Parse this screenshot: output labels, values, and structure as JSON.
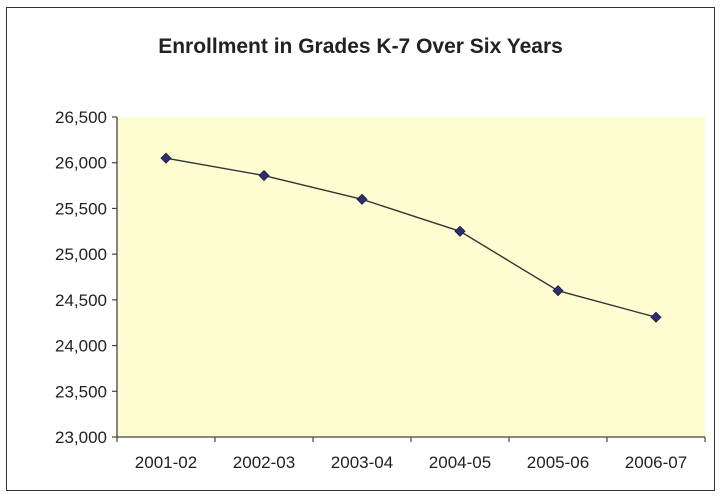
{
  "chart_data": {
    "type": "line",
    "title": "Enrollment in Grades K-7 Over Six Years",
    "xlabel": "",
    "ylabel": "",
    "categories": [
      "2001-02",
      "2002-03",
      "2003-04",
      "2004-05",
      "2005-06",
      "2006-07"
    ],
    "series": [
      {
        "values": [
          26050,
          25860,
          25600,
          25250,
          24600,
          24310
        ]
      }
    ],
    "ylim": [
      23000,
      26500
    ],
    "y_ticks": [
      23000,
      23500,
      24000,
      24500,
      25000,
      25500,
      26000,
      26500
    ],
    "y_tick_labels": [
      "23,000",
      "23,500",
      "24,000",
      "24,500",
      "25,000",
      "25,500",
      "26,000",
      "26,500"
    ],
    "grid": false,
    "legend": "none",
    "colors": {
      "plot_background": "#fefdd2",
      "line": "#333333",
      "marker": "#2e2e6e"
    }
  }
}
